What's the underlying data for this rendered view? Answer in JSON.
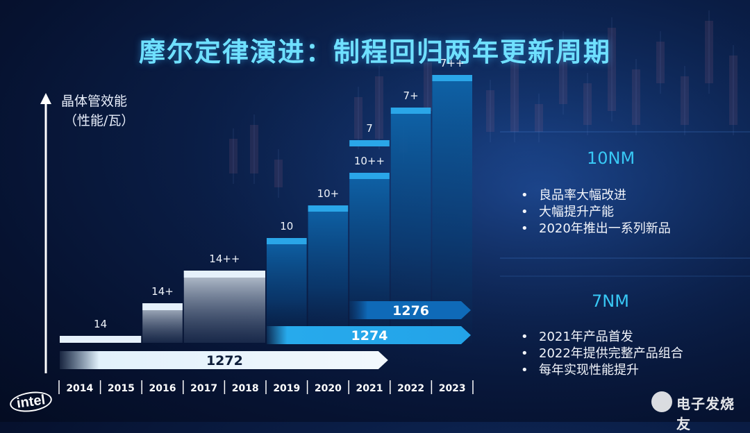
{
  "title": "摩尔定律演进：制程回归两年更新周期",
  "ylabel_line1": "晶体管效能",
  "ylabel_line2": "（性能/瓦）",
  "chart_data": {
    "type": "bar",
    "categories": [
      "2014",
      "2015",
      "2016",
      "2017",
      "2018",
      "2019",
      "2020",
      "2021",
      "2022",
      "2023"
    ],
    "steps": [
      {
        "label": "14",
        "from": "2014",
        "to": "2015",
        "level": 1
      },
      {
        "label": "14+",
        "from": "2016",
        "to": "2016",
        "level": 2
      },
      {
        "label": "14++",
        "from": "2017",
        "to": "2018",
        "level": 3
      },
      {
        "label": "10",
        "from": "2019",
        "to": "2019",
        "level": 4
      },
      {
        "label": "10+",
        "from": "2020",
        "to": "2020",
        "level": 5
      },
      {
        "label": "10++",
        "from": "2021",
        "to": "2021",
        "level": 6
      },
      {
        "label": "7",
        "from": "2021",
        "to": "2021",
        "level": 7
      },
      {
        "label": "7+",
        "from": "2022",
        "to": "2022",
        "level": 8
      },
      {
        "label": "7++",
        "from": "2023",
        "to": "2023",
        "level": 9
      }
    ],
    "timelines": [
      {
        "label": "1272",
        "start": "2014",
        "end": "2021"
      },
      {
        "label": "1274",
        "start": "2019",
        "end": "2023"
      },
      {
        "label": "1276",
        "start": "2021",
        "end": "2023"
      }
    ]
  },
  "section_10nm": {
    "heading": "10NM",
    "items": [
      "良品率大幅改进",
      "大幅提升产能",
      "2020年推出一系列新品"
    ]
  },
  "section_7nm": {
    "heading": "7NM",
    "items": [
      "2021年产品首发",
      "2022年提供完整产品组合",
      "每年实现性能提升"
    ]
  },
  "logo_text": "intel",
  "watermark_text": "电子发烧友"
}
